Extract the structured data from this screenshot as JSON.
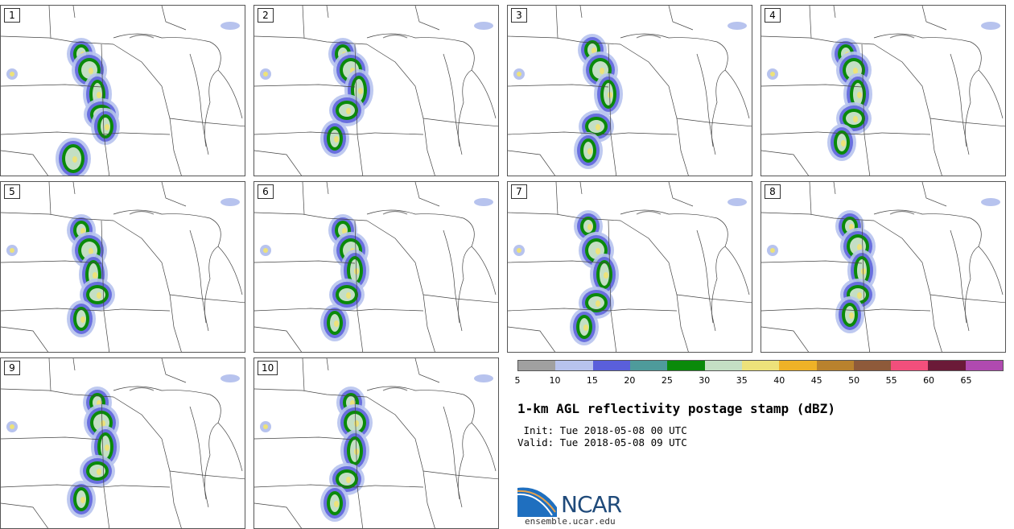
{
  "panels": [
    {
      "label": "1"
    },
    {
      "label": "2"
    },
    {
      "label": "3"
    },
    {
      "label": "4"
    },
    {
      "label": "5"
    },
    {
      "label": "6"
    },
    {
      "label": "7"
    },
    {
      "label": "8"
    },
    {
      "label": "9"
    },
    {
      "label": "10"
    }
  ],
  "colorbar": {
    "colors": [
      "#a0a0a0",
      "#b7c3ee",
      "#5a5fdb",
      "#4e9b9b",
      "#0a8a0a",
      "#c4dfc4",
      "#ede27a",
      "#efb227",
      "#b9822d",
      "#8e5a3a",
      "#f24f7c",
      "#6b1a38",
      "#b04ab0"
    ],
    "ticks": [
      "5",
      "10",
      "15",
      "20",
      "25",
      "30",
      "35",
      "40",
      "45",
      "50",
      "55",
      "60",
      "65"
    ]
  },
  "title": "1-km AGL reflectivity postage stamp (dBZ)",
  "init_line": " Init: Tue 2018-05-08 00 UTC",
  "valid_line": "Valid: Tue 2018-05-08 09 UTC",
  "logo": {
    "text": "NCAR",
    "site": "ensemble.ucar.edu"
  }
}
